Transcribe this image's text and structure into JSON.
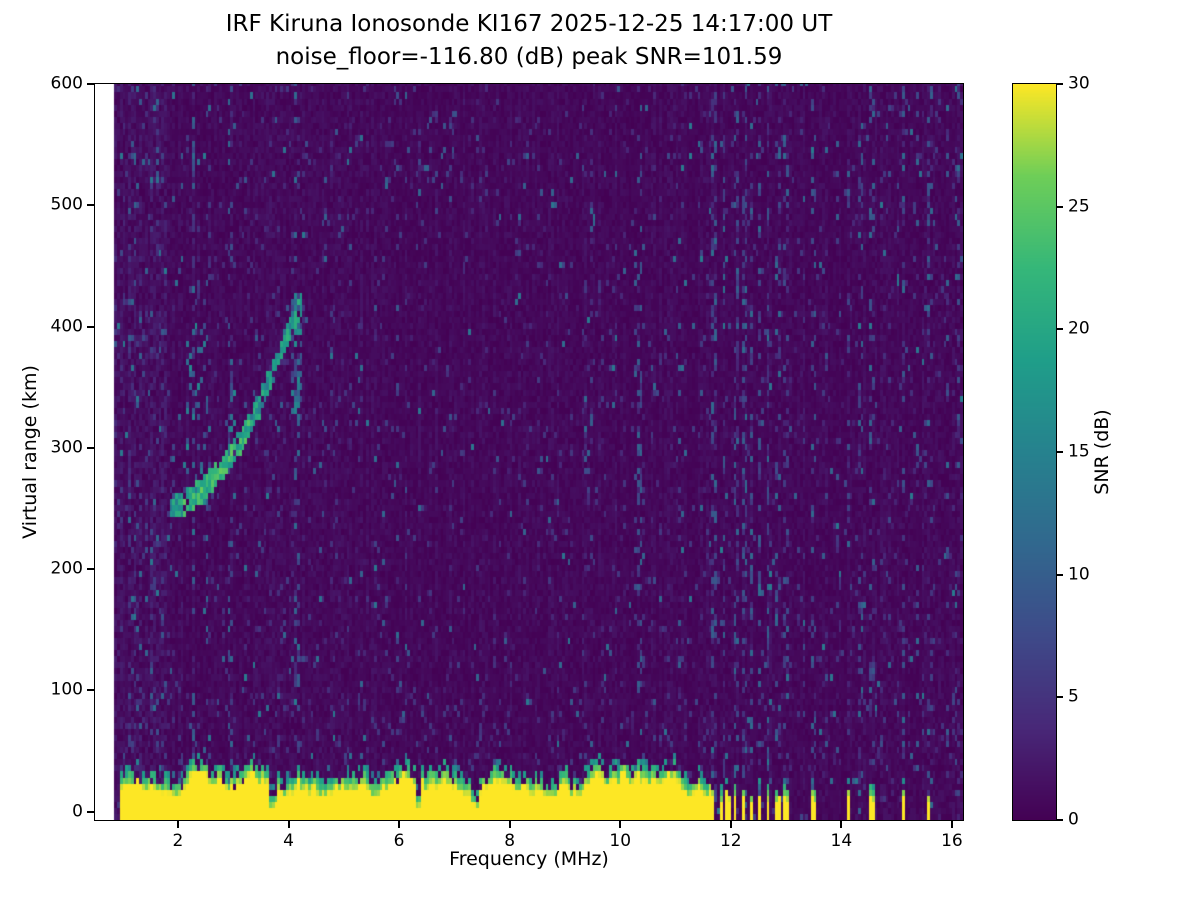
{
  "page": {
    "background": "#ffffff"
  },
  "chart_data": {
    "type": "heatmap",
    "title": "IRF Kiruna Ionosonde KI167 2025-12-25 14:17:00  UT",
    "subtitle": "noise_floor=-116.80 (dB) peak SNR=101.59",
    "xlabel": "Frequency (MHz)",
    "ylabel": "Virtual range (km)",
    "xlim": [
      0.5,
      16.2
    ],
    "ylim": [
      -7,
      600
    ],
    "xticks": [
      2,
      4,
      6,
      8,
      10,
      12,
      14,
      16
    ],
    "yticks": [
      0,
      100,
      200,
      300,
      400,
      500,
      600
    ],
    "data_extent": {
      "freq_mhz": [
        0.85,
        16.2
      ],
      "range_km": [
        -7,
        600
      ]
    },
    "colorbar": {
      "label": "SNR (dB)",
      "ticks": [
        0,
        5,
        10,
        15,
        20,
        25,
        30
      ],
      "vmin": 0,
      "vmax": 30
    },
    "colormap": "viridis",
    "colormap_stops": [
      [
        0.0,
        "#440154"
      ],
      [
        0.125,
        "#482878"
      ],
      [
        0.25,
        "#3e4a89"
      ],
      [
        0.375,
        "#31688e"
      ],
      [
        0.5,
        "#26828e"
      ],
      [
        0.625,
        "#1f9e89"
      ],
      [
        0.75,
        "#35b779"
      ],
      [
        0.875,
        "#6ece58"
      ],
      [
        1.0,
        "#fde725"
      ]
    ],
    "features": {
      "background_snr_db": [
        0,
        2
      ],
      "ground_band": {
        "f_start": 0.92,
        "f_end": 11.62,
        "top_km_min": 16,
        "top_km_max": 34,
        "snr": 30,
        "notches_mhz": [
          3.7,
          6.32,
          7.35
        ]
      },
      "comb_teeth_mhz": [
        [
          11.63,
          11.7
        ],
        [
          11.76,
          11.83
        ],
        [
          11.9,
          11.97
        ],
        [
          12.04,
          12.1
        ],
        [
          12.17,
          12.24
        ],
        [
          12.31,
          12.39
        ],
        [
          12.47,
          12.54
        ],
        [
          12.62,
          12.69
        ],
        [
          12.79,
          12.86
        ],
        [
          12.95,
          13.01
        ]
      ],
      "isolated_bars_mhz": [
        [
          13.45,
          13.53
        ],
        [
          14.06,
          14.14
        ],
        [
          14.49,
          14.57
        ],
        [
          15.06,
          15.14
        ],
        [
          15.52,
          15.6
        ]
      ],
      "rfi_columns": [
        {
          "f": 2.25,
          "p": 0.3
        },
        {
          "f": 2.5,
          "p": 0.12
        },
        {
          "f": 2.92,
          "p": 0.18
        },
        {
          "f": 4.12,
          "p": 0.22
        },
        {
          "f": 5.95,
          "p": 0.1
        },
        {
          "f": 9.45,
          "p": 0.12
        },
        {
          "f": 10.32,
          "p": 0.2
        },
        {
          "f": 11.05,
          "p": 0.12
        },
        {
          "f": 11.68,
          "p": 0.28
        },
        {
          "f": 11.85,
          "p": 0.25
        },
        {
          "f": 12.07,
          "p": 0.28
        },
        {
          "f": 12.21,
          "p": 0.3
        },
        {
          "f": 12.35,
          "p": 0.25
        },
        {
          "f": 12.5,
          "p": 0.28
        },
        {
          "f": 12.65,
          "p": 0.28
        },
        {
          "f": 12.82,
          "p": 0.22
        },
        {
          "f": 12.98,
          "p": 0.22
        },
        {
          "f": 13.49,
          "p": 0.2
        },
        {
          "f": 13.9,
          "p": 0.14
        },
        {
          "f": 14.1,
          "p": 0.22
        },
        {
          "f": 14.33,
          "p": 0.16
        },
        {
          "f": 14.53,
          "p": 0.22
        },
        {
          "f": 15.1,
          "p": 0.22
        },
        {
          "f": 15.35,
          "p": 0.14
        },
        {
          "f": 15.56,
          "p": 0.22
        },
        {
          "f": 15.9,
          "p": 0.16
        },
        {
          "f": 16.08,
          "p": 0.14
        }
      ],
      "echo_trace": {
        "points": [
          [
            1.85,
            247
          ],
          [
            2.1,
            252
          ],
          [
            2.4,
            262
          ],
          [
            2.7,
            276
          ],
          [
            2.95,
            291
          ],
          [
            3.2,
            309
          ],
          [
            3.45,
            333
          ],
          [
            3.7,
            361
          ],
          [
            3.95,
            391
          ],
          [
            4.22,
            420
          ]
        ],
        "snr_max": 26
      },
      "spread_streaks": [
        {
          "f0": 2.15,
          "f1": 2.45,
          "h0": 250,
          "h1": 400,
          "p": 0.2
        },
        {
          "f0": 2.82,
          "f1": 3.05,
          "h0": 285,
          "h1": 345,
          "p": 0.18
        },
        {
          "f0": 4.02,
          "f1": 4.2,
          "h0": 325,
          "h1": 425,
          "p": 0.45
        }
      ],
      "noise_patches": [
        {
          "f0": 6.3,
          "f1": 7.0,
          "h0": 500,
          "h1": 575,
          "p": 0.1
        },
        {
          "f0": 9.3,
          "f1": 9.6,
          "h0": 230,
          "h1": 300,
          "p": 0.1
        },
        {
          "f0": 10.25,
          "f1": 10.42,
          "h0": 150,
          "h1": 500,
          "p": 0.15
        },
        {
          "f0": 1.0,
          "f1": 1.75,
          "h0": 40,
          "h1": 600,
          "p": 0.04
        }
      ]
    }
  }
}
